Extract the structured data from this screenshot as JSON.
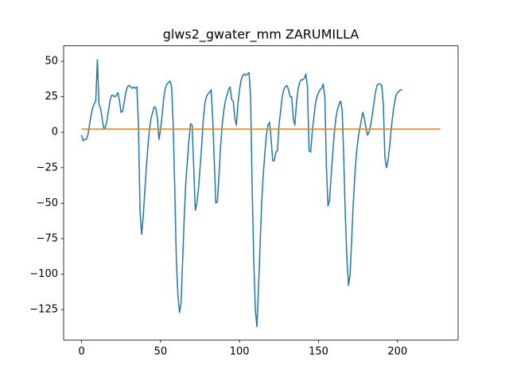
{
  "chart_data": {
    "type": "line",
    "title": "glws2_gwater_mm ZARUMILLA",
    "xlim": [
      -11.35,
      238.35
    ],
    "ylim": [
      -146.4,
      60.9
    ],
    "xticks": [
      0,
      50,
      100,
      150,
      200
    ],
    "yticks": [
      {
        "value": -125,
        "label": "−125"
      },
      {
        "value": -100,
        "label": "−100"
      },
      {
        "value": -75,
        "label": "−75"
      },
      {
        "value": -50,
        "label": "−50"
      },
      {
        "value": -25,
        "label": "−25"
      },
      0,
      25,
      50
    ],
    "grid": false,
    "series": [
      {
        "color": "#1f77b4",
        "x": [
          0,
          1,
          2,
          3,
          4,
          5,
          6,
          7,
          8,
          9,
          10,
          11,
          12,
          13,
          14,
          15,
          16,
          17,
          18,
          19,
          20,
          21,
          22,
          23,
          24,
          25,
          26,
          27,
          28,
          29,
          30,
          31,
          32,
          33,
          34,
          35,
          36,
          37,
          38,
          39,
          40,
          41,
          42,
          43,
          44,
          45,
          46,
          47,
          48,
          49,
          50,
          51,
          52,
          53,
          54,
          55,
          56,
          57,
          58,
          59,
          60,
          61,
          62,
          63,
          64,
          65,
          66,
          67,
          68,
          69,
          70,
          71,
          72,
          73,
          74,
          75,
          76,
          77,
          78,
          79,
          80,
          81,
          82,
          83,
          84,
          85,
          86,
          87,
          88,
          89,
          90,
          91,
          92,
          93,
          94,
          95,
          96,
          97,
          98,
          99,
          100,
          101,
          102,
          103,
          104,
          105,
          106,
          107,
          108,
          109,
          110,
          111,
          112,
          113,
          114,
          115,
          116,
          117,
          118,
          119,
          120,
          121,
          122,
          123,
          124,
          125,
          126,
          127,
          128,
          129,
          130,
          131,
          132,
          133,
          134,
          135,
          136,
          137,
          138,
          139,
          140,
          141,
          142,
          143,
          144,
          145,
          146,
          147,
          148,
          149,
          150,
          151,
          152,
          153,
          154,
          155,
          156,
          157,
          158,
          159,
          160,
          161,
          162,
          163,
          164,
          165,
          166,
          167,
          168,
          169,
          170,
          171,
          172,
          173,
          174,
          175,
          176,
          177,
          178,
          179,
          180,
          181,
          182,
          183,
          184,
          185,
          186,
          187,
          188,
          189,
          190,
          191,
          192,
          193,
          194,
          195,
          196,
          197,
          198,
          199,
          200,
          201,
          202,
          203
        ],
        "values": [
          -2,
          -6,
          -5,
          -5,
          -2,
          5,
          12,
          17,
          20,
          22,
          51,
          20,
          17,
          10,
          3,
          3,
          8,
          15,
          22,
          26,
          26,
          25,
          26,
          28,
          22,
          14,
          15,
          21,
          28,
          32,
          33,
          32,
          31,
          32,
          31,
          32,
          5,
          -55,
          -72,
          -60,
          -42,
          -25,
          -10,
          2,
          10,
          14,
          18,
          17,
          10,
          -5,
          2,
          12,
          24,
          31,
          34,
          35,
          36,
          32,
          5,
          -40,
          -90,
          -115,
          -127,
          -120,
          -90,
          -60,
          -35,
          -20,
          -5,
          6,
          5,
          -25,
          -55,
          -50,
          -40,
          -25,
          -10,
          8,
          20,
          25,
          27,
          28,
          30,
          10,
          -20,
          -50,
          -49,
          -30,
          -10,
          5,
          15,
          22,
          26,
          30,
          32,
          23,
          22,
          10,
          5,
          20,
          30,
          37,
          40,
          41,
          40,
          41,
          42,
          25,
          -40,
          -90,
          -125,
          -137,
          -110,
          -80,
          -50,
          -30,
          -15,
          -2,
          5,
          7,
          -5,
          -20,
          -20,
          -14,
          -13,
          5,
          15,
          25,
          30,
          32,
          33,
          30,
          25,
          25,
          10,
          5,
          20,
          30,
          35,
          37,
          37,
          38,
          41,
          32,
          -13,
          -14,
          0,
          10,
          20,
          25,
          28,
          30,
          31,
          34,
          25,
          -25,
          -52,
          -48,
          -30,
          -15,
          0,
          10,
          16,
          20,
          22,
          15,
          -20,
          -60,
          -90,
          -108,
          -100,
          -75,
          -50,
          -30,
          -15,
          -5,
          2,
          8,
          14,
          10,
          3,
          -2,
          0,
          5,
          12,
          20,
          28,
          33,
          34,
          34,
          33,
          20,
          -17,
          -25,
          -20,
          -10,
          2,
          12,
          20,
          26,
          28,
          29,
          30,
          30
        ]
      },
      {
        "color": "#ff7f0e",
        "x": [
          0,
          227
        ],
        "values": [
          2.3,
          2.3
        ]
      }
    ]
  }
}
